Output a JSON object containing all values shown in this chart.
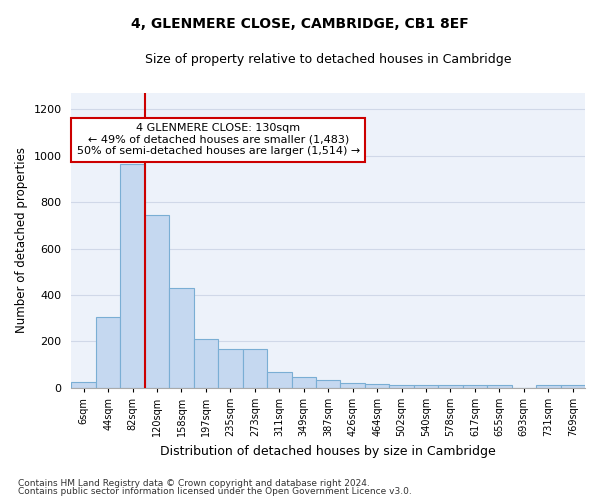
{
  "title1": "4, GLENMERE CLOSE, CAMBRIDGE, CB1 8EF",
  "title2": "Size of property relative to detached houses in Cambridge",
  "xlabel": "Distribution of detached houses by size in Cambridge",
  "ylabel": "Number of detached properties",
  "bin_labels": [
    "6sqm",
    "44sqm",
    "82sqm",
    "120sqm",
    "158sqm",
    "197sqm",
    "235sqm",
    "273sqm",
    "311sqm",
    "349sqm",
    "387sqm",
    "426sqm",
    "464sqm",
    "502sqm",
    "540sqm",
    "578sqm",
    "617sqm",
    "655sqm",
    "693sqm",
    "731sqm",
    "769sqm"
  ],
  "bar_heights": [
    25,
    305,
    965,
    745,
    430,
    210,
    165,
    165,
    70,
    48,
    35,
    20,
    15,
    10,
    10,
    10,
    10,
    10,
    0,
    10,
    10
  ],
  "bar_color": "#c5d8f0",
  "bar_edge_color": "#7aaed4",
  "vline_x": 2.5,
  "vline_color": "#cc0000",
  "annotation_text": "4 GLENMERE CLOSE: 130sqm\n← 49% of detached houses are smaller (1,483)\n50% of semi-detached houses are larger (1,514) →",
  "annotation_box_color": "#cc0000",
  "ylim": [
    0,
    1270
  ],
  "yticks": [
    0,
    200,
    400,
    600,
    800,
    1000,
    1200
  ],
  "grid_color": "#d0d8e8",
  "background_color": "#edf2fa",
  "footnote1": "Contains HM Land Registry data © Crown copyright and database right 2024.",
  "footnote2": "Contains public sector information licensed under the Open Government Licence v3.0."
}
